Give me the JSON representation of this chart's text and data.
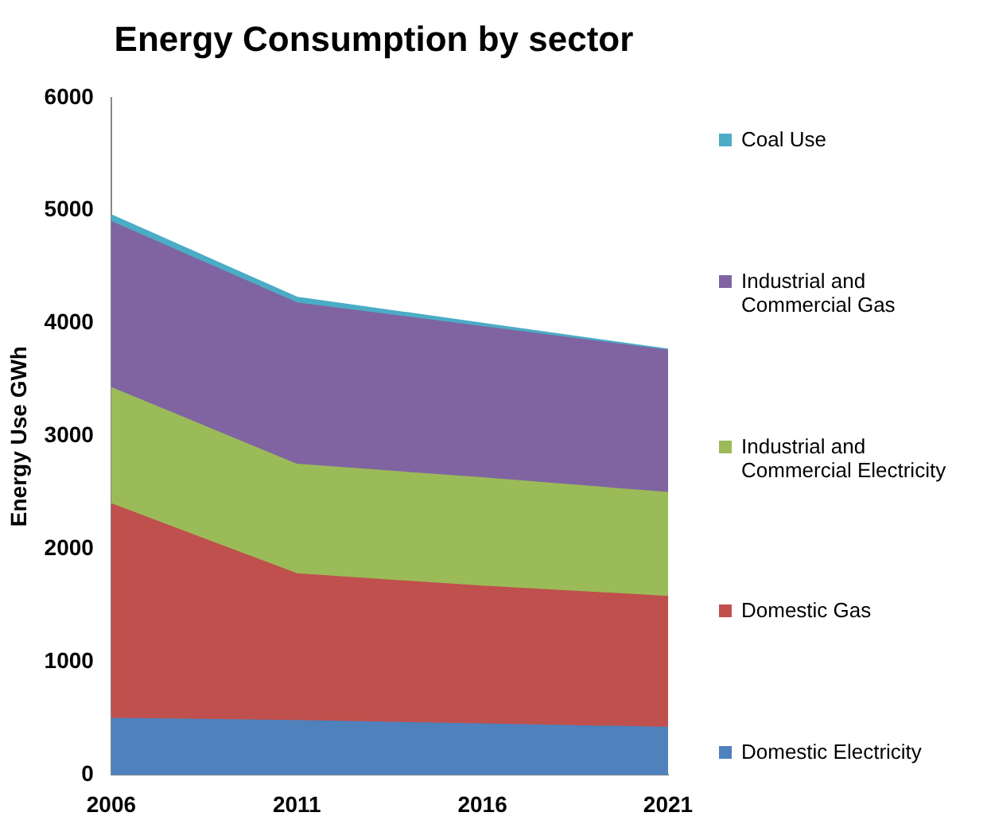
{
  "chart_data": {
    "type": "area",
    "stacked": true,
    "title": "Energy Consumption by sector",
    "ylabel": "Energy Use GWh",
    "categories": [
      "2006",
      "2011",
      "2016",
      "2021"
    ],
    "series": [
      {
        "name": "Domestic Electricity",
        "color": "#4f81bd",
        "values": [
          500,
          480,
          450,
          420
        ]
      },
      {
        "name": "Domestic Gas",
        "color": "#c0504d",
        "values": [
          1900,
          1300,
          1220,
          1160
        ]
      },
      {
        "name": "Industrial and Commercial Electricity",
        "color": "#9bbb59",
        "values": [
          1030,
          970,
          960,
          920
        ]
      },
      {
        "name": "Industrial and Commercial Gas",
        "color": "#8064a2",
        "values": [
          1470,
          1430,
          1340,
          1260
        ]
      },
      {
        "name": "Coal Use",
        "color": "#4bacc6",
        "values": [
          60,
          50,
          30,
          10
        ]
      }
    ],
    "ylim": [
      0,
      6000
    ],
    "yticks": [
      0,
      1000,
      2000,
      3000,
      4000,
      5000,
      6000
    ],
    "grid": false,
    "legend": "right"
  }
}
